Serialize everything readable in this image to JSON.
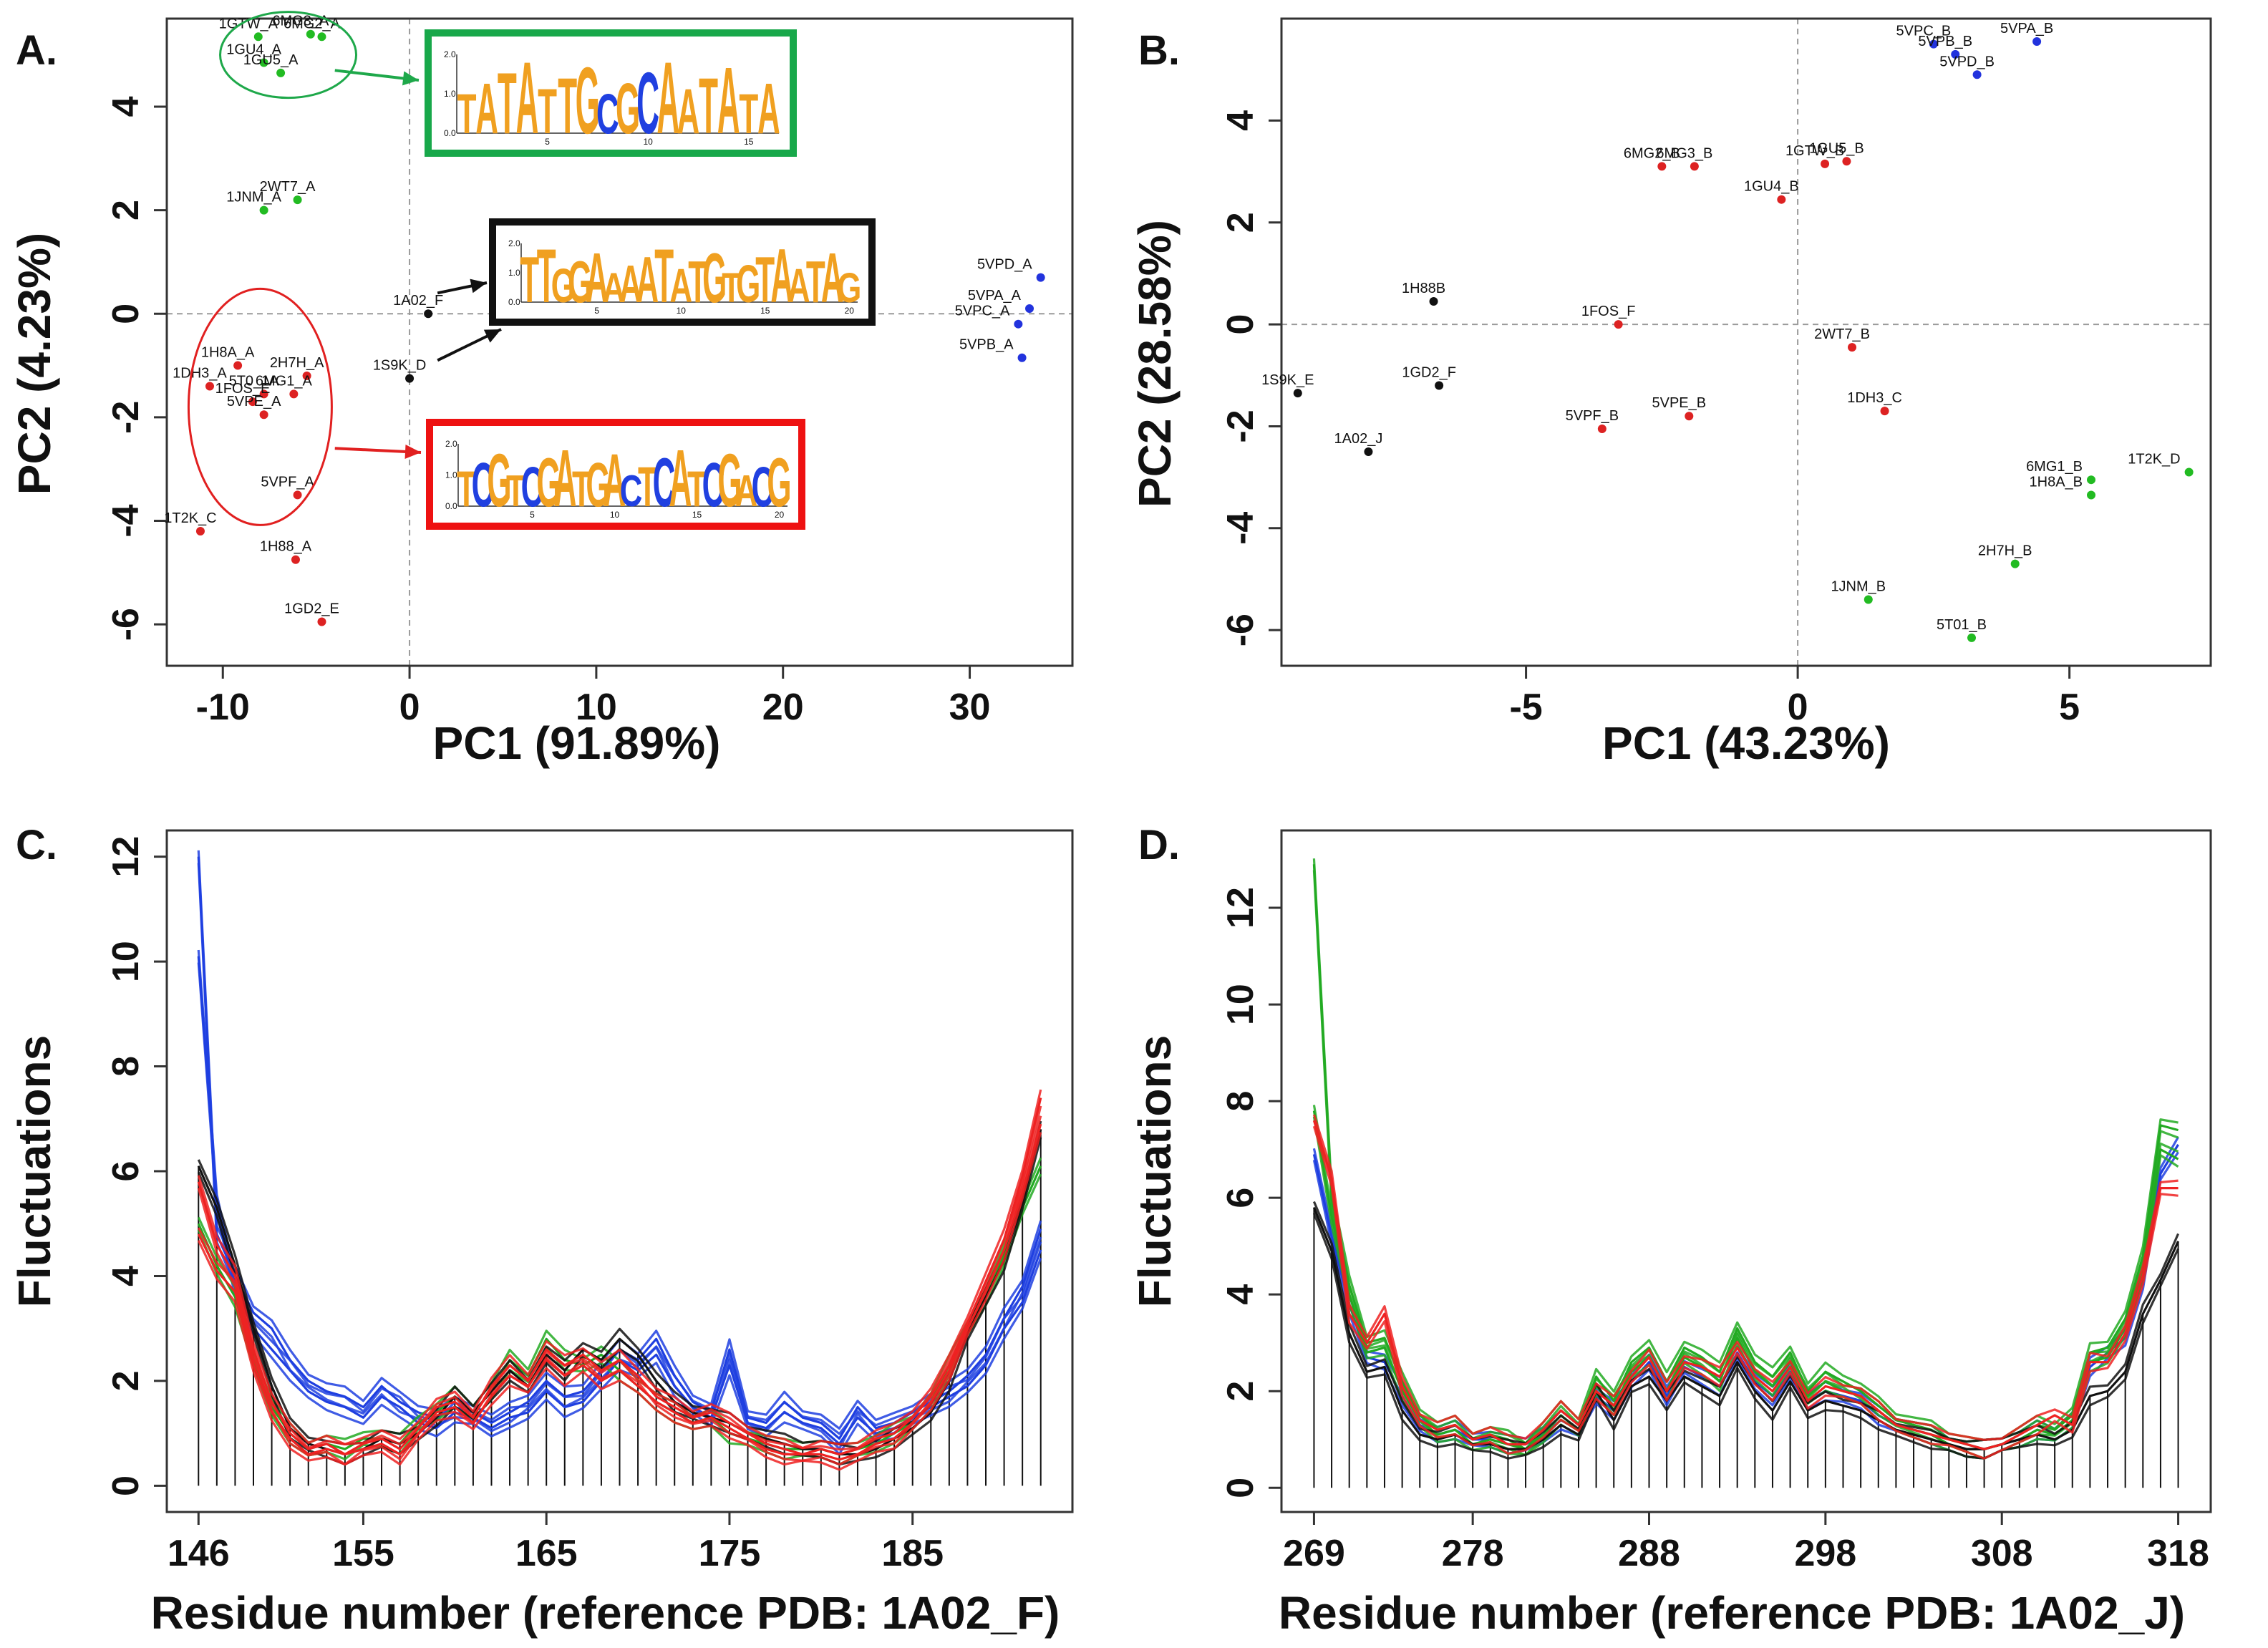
{
  "chart_data": [
    {
      "panel": "A.",
      "type": "scatter",
      "xlabel": "PC1 (91.89%)",
      "ylabel": "PC2 (4.23%)",
      "xlim": [
        -13,
        35.5
      ],
      "ylim": [
        -6.8,
        5.7
      ],
      "xticks": [
        -10,
        0,
        10,
        20,
        30
      ],
      "yticks": [
        -6,
        -4,
        -2,
        0,
        2,
        4
      ],
      "zero_lines": true,
      "points": [
        {
          "label": "6MG3_A",
          "x": -5.3,
          "y": 5.4,
          "color": "#22bb22"
        },
        {
          "label": "1GTW_A",
          "x": -8.1,
          "y": 5.35,
          "color": "#22bb22"
        },
        {
          "label": "6MG2_A",
          "x": -4.7,
          "y": 5.35,
          "color": "#22bb22"
        },
        {
          "label": "1GU4_A",
          "x": -7.8,
          "y": 4.85,
          "color": "#22bb22"
        },
        {
          "label": "1GU5_A",
          "x": -6.9,
          "y": 4.65,
          "color": "#22bb22"
        },
        {
          "label": "2WT7_A",
          "x": -6.0,
          "y": 2.2,
          "color": "#22bb22"
        },
        {
          "label": "1JNM_A",
          "x": -7.8,
          "y": 2.0,
          "color": "#22bb22"
        },
        {
          "label": "1A02_F",
          "x": 1.0,
          "y": 0.0,
          "color": "#111111"
        },
        {
          "label": "1S9K_D",
          "x": 0.0,
          "y": -1.25,
          "color": "#111111"
        },
        {
          "label": "5VPD_A",
          "x": 33.8,
          "y": 0.7,
          "color": "#2233dd"
        },
        {
          "label": "5VPA_A",
          "x": 33.2,
          "y": 0.1,
          "color": "#2233dd"
        },
        {
          "label": "5VPC_A",
          "x": 32.6,
          "y": -0.2,
          "color": "#2233dd"
        },
        {
          "label": "5VPB_A",
          "x": 32.8,
          "y": -0.85,
          "color": "#2233dd"
        },
        {
          "label": "1H8A_A",
          "x": -9.2,
          "y": -1.0,
          "color": "#dd2222"
        },
        {
          "label": "2H7H_A",
          "x": -5.5,
          "y": -1.2,
          "color": "#dd2222"
        },
        {
          "label": "1DH3_A",
          "x": -10.7,
          "y": -1.4,
          "color": "#dd2222"
        },
        {
          "label": "5T0_1A",
          "x": -7.8,
          "y": -1.55,
          "color": "#dd2222"
        },
        {
          "label": "6MG1_A",
          "x": -6.2,
          "y": -1.55,
          "color": "#dd2222"
        },
        {
          "label": "1FOS_E",
          "x": -8.4,
          "y": -1.7,
          "color": "#dd2222"
        },
        {
          "label": "5VPE_A",
          "x": -7.8,
          "y": -1.95,
          "color": "#dd2222"
        },
        {
          "label": "5VPF_A",
          "x": -6.0,
          "y": -3.5,
          "color": "#dd2222"
        },
        {
          "label": "1T2K_C",
          "x": -11.2,
          "y": -4.2,
          "color": "#dd2222"
        },
        {
          "label": "1H88_A",
          "x": -6.1,
          "y": -4.75,
          "color": "#dd2222"
        },
        {
          "label": "1GD2_E",
          "x": -4.7,
          "y": -5.95,
          "color": "#dd2222"
        }
      ],
      "motif_logos": [
        {
          "color": "#18a84a",
          "sequence": "TATATTGCGCAATATA",
          "ymax_label": "2.0",
          "ymid_label": "1.0",
          "ymin_label": "0.0",
          "pos_labels": [
            "5",
            "10",
            "15"
          ]
        },
        {
          "color": "#111111",
          "sequence": "TTGGAAAATATGTGTAATAG",
          "ymax_label": "2.0",
          "ymid_label": "1.0",
          "ymin_label": "0.0",
          "pos_labels": [
            "5",
            "10",
            "15",
            "20"
          ]
        },
        {
          "color": "#ee1111",
          "sequence": "TCGTCGATGACTCATCGACG",
          "ymax_label": "2.0",
          "ymid_label": "1.0",
          "ymin_label": "0.0",
          "pos_labels": [
            "5",
            "10",
            "15",
            "20"
          ]
        }
      ]
    },
    {
      "panel": "B.",
      "type": "scatter",
      "xlabel": "PC1 (43.23%)",
      "ylabel": "PC2 (28.58%)",
      "xlim": [
        -9.5,
        7.6
      ],
      "ylim": [
        -6.7,
        6.0
      ],
      "xticks": [
        -5,
        0,
        5
      ],
      "yticks": [
        -6,
        -4,
        -2,
        0,
        2,
        4
      ],
      "zero_lines": true,
      "points": [
        {
          "label": "5VPC_B",
          "x": 2.5,
          "y": 5.5,
          "color": "#2233dd"
        },
        {
          "label": "5VPA_B",
          "x": 4.4,
          "y": 5.55,
          "color": "#2233dd"
        },
        {
          "label": "5VPB_B",
          "x": 2.9,
          "y": 5.3,
          "color": "#2233dd"
        },
        {
          "label": "5VPD_B",
          "x": 3.3,
          "y": 4.9,
          "color": "#2233dd"
        },
        {
          "label": "6MG2_B",
          "x": -2.5,
          "y": 3.1,
          "color": "#dd2222"
        },
        {
          "label": "6MG3_B",
          "x": -1.9,
          "y": 3.1,
          "color": "#dd2222"
        },
        {
          "label": "1GTW_B",
          "x": 0.5,
          "y": 3.15,
          "color": "#dd2222"
        },
        {
          "label": "1GU5_B",
          "x": 0.9,
          "y": 3.2,
          "color": "#dd2222"
        },
        {
          "label": "1GU4_B",
          "x": -0.3,
          "y": 2.45,
          "color": "#dd2222"
        },
        {
          "label": "1H88B",
          "x": -6.7,
          "y": 0.45,
          "color": "#111111"
        },
        {
          "label": "1FOS_F",
          "x": -3.3,
          "y": 0.0,
          "color": "#dd2222"
        },
        {
          "label": "2WT7_B",
          "x": 1.0,
          "y": -0.45,
          "color": "#dd2222"
        },
        {
          "label": "1S9K_E",
          "x": -9.2,
          "y": -1.35,
          "color": "#111111"
        },
        {
          "label": "1GD2_F",
          "x": -6.6,
          "y": -1.2,
          "color": "#111111"
        },
        {
          "label": "5VPE_B",
          "x": -2.0,
          "y": -1.8,
          "color": "#dd2222"
        },
        {
          "label": "1DH3_C",
          "x": 1.6,
          "y": -1.7,
          "color": "#dd2222"
        },
        {
          "label": "5VPF_B",
          "x": -3.6,
          "y": -2.05,
          "color": "#dd2222"
        },
        {
          "label": "1A02_J",
          "x": -7.9,
          "y": -2.5,
          "color": "#111111"
        },
        {
          "label": "6MG1_B",
          "x": 5.4,
          "y": -3.05,
          "color": "#22bb22"
        },
        {
          "label": "1T2K_D",
          "x": 7.2,
          "y": -2.9,
          "color": "#22bb22"
        },
        {
          "label": "1H8A_B",
          "x": 5.4,
          "y": -3.35,
          "color": "#22bb22"
        },
        {
          "label": "2H7H_B",
          "x": 4.0,
          "y": -4.7,
          "color": "#22bb22"
        },
        {
          "label": "1JNM_B",
          "x": 1.3,
          "y": -5.4,
          "color": "#22bb22"
        },
        {
          "label": "5T01_B",
          "x": 3.2,
          "y": -6.15,
          "color": "#22bb22"
        }
      ]
    },
    {
      "panel": "C.",
      "type": "line",
      "xlabel": "Residue number (reference PDB: 1A02_F)",
      "ylabel": "Fluctuations",
      "x_start": 146,
      "x_end": 192,
      "xticks": [
        146,
        155,
        165,
        175,
        185
      ],
      "yticks": [
        0,
        2,
        4,
        6,
        8,
        10,
        12
      ],
      "ylim": [
        -0.5,
        12.5
      ],
      "series": [
        {
          "name": "blue",
          "color": "#1f3fe0",
          "values": [
            12.0,
            4.8,
            4.0,
            3.3,
            3.0,
            2.4,
            2.0,
            1.8,
            1.7,
            1.5,
            1.9,
            1.6,
            1.4,
            1.3,
            1.5,
            1.4,
            1.2,
            1.4,
            1.6,
            2.0,
            1.7,
            1.8,
            2.2,
            2.6,
            2.4,
            2.8,
            2.1,
            1.6,
            1.4,
            2.6,
            1.3,
            1.2,
            1.6,
            1.3,
            1.2,
            0.9,
            1.5,
            1.1,
            1.2,
            1.4,
            1.6,
            1.8,
            2.1,
            2.5,
            3.2,
            3.8,
            4.9
          ]
        },
        {
          "name": "blue-2",
          "color": "#1f3fe0",
          "values": [
            10.1,
            5.4,
            3.8,
            3.0,
            2.6,
            2.2,
            1.8,
            1.6,
            1.5,
            1.3,
            1.7,
            1.5,
            1.2,
            1.1,
            1.4,
            1.3,
            1.1,
            1.3,
            1.4,
            1.8,
            1.5,
            1.6,
            2.0,
            2.4,
            2.2,
            2.5,
            1.9,
            1.5,
            1.3,
            2.3,
            1.2,
            1.1,
            1.4,
            1.2,
            1.1,
            0.8,
            1.3,
            1.0,
            1.1,
            1.3,
            1.5,
            1.7,
            1.9,
            2.3,
            3.0,
            3.5,
            4.5
          ]
        },
        {
          "name": "black",
          "color": "#111111",
          "values": [
            6.1,
            5.3,
            4.2,
            3.0,
            1.9,
            1.1,
            0.8,
            0.7,
            0.6,
            0.7,
            0.9,
            0.8,
            1.0,
            1.3,
            1.7,
            1.4,
            1.8,
            2.2,
            1.9,
            2.5,
            2.2,
            2.6,
            2.4,
            2.8,
            2.5,
            2.0,
            1.6,
            1.4,
            1.3,
            1.2,
            1.0,
            0.9,
            0.8,
            0.7,
            0.7,
            0.6,
            0.6,
            0.7,
            0.9,
            1.1,
            1.4,
            2.0,
            2.9,
            3.6,
            4.3,
            5.4,
            6.8
          ]
        },
        {
          "name": "red",
          "color": "#ee2222",
          "values": [
            5.8,
            4.6,
            4.0,
            2.6,
            1.6,
            1.0,
            0.7,
            0.8,
            0.6,
            0.8,
            0.9,
            0.7,
            1.1,
            1.5,
            1.6,
            1.3,
            1.9,
            2.3,
            2.0,
            2.6,
            2.3,
            2.5,
            2.2,
            2.4,
            2.1,
            1.7,
            1.5,
            1.3,
            1.4,
            1.2,
            1.0,
            0.8,
            0.7,
            0.6,
            0.7,
            0.6,
            0.7,
            0.9,
            1.0,
            1.3,
            1.7,
            2.3,
            3.1,
            3.9,
            4.7,
            5.9,
            7.4
          ]
        },
        {
          "name": "red-2",
          "color": "#ee2222",
          "values": [
            4.8,
            4.1,
            3.7,
            2.3,
            1.4,
            0.9,
            0.6,
            0.7,
            0.6,
            0.7,
            0.8,
            0.6,
            1.0,
            1.4,
            1.5,
            1.2,
            1.7,
            2.1,
            1.9,
            2.4,
            2.1,
            2.3,
            2.0,
            2.2,
            1.9,
            1.6,
            1.4,
            1.2,
            1.3,
            1.1,
            0.9,
            0.7,
            0.6,
            0.6,
            0.6,
            0.5,
            0.6,
            0.8,
            0.9,
            1.2,
            1.6,
            2.2,
            3.0,
            3.7,
            4.5,
            5.6,
            6.9
          ]
        },
        {
          "name": "green",
          "color": "#22aa22",
          "values": [
            5.0,
            4.2,
            3.6,
            2.4,
            1.5,
            1.0,
            0.7,
            0.8,
            0.7,
            0.9,
            0.9,
            0.8,
            1.2,
            1.4,
            1.7,
            1.4,
            1.8,
            2.4,
            2.1,
            2.8,
            2.4,
            2.3,
            2.5,
            2.2,
            1.9,
            1.6,
            1.4,
            1.2,
            1.3,
            1.0,
            0.9,
            0.8,
            0.7,
            0.7,
            0.7,
            0.6,
            0.7,
            0.8,
            1.0,
            1.2,
            1.6,
            2.3,
            3.0,
            3.6,
            4.4,
            5.3,
            6.1
          ]
        }
      ],
      "stems": "black vertical lines from 0 to the black series at every residue"
    },
    {
      "panel": "D.",
      "type": "line",
      "xlabel": "Residue number (reference PDB: 1A02_J)",
      "ylabel": "Fluctuations",
      "x_start": 269,
      "x_end": 318,
      "xticks": [
        269,
        278,
        288,
        298,
        308,
        318
      ],
      "yticks": [
        0,
        2,
        4,
        6,
        8,
        10,
        12
      ],
      "ylim": [
        -0.5,
        13.6
      ],
      "series": [
        {
          "name": "green",
          "color": "#22aa22",
          "values": [
            12.9,
            6.0,
            4.2,
            3.0,
            3.1,
            2.2,
            1.5,
            1.2,
            1.3,
            1.0,
            1.1,
            1.0,
            0.8,
            1.2,
            1.6,
            1.3,
            2.3,
            1.8,
            2.6,
            2.9,
            2.2,
            2.9,
            2.7,
            2.4,
            3.3,
            2.6,
            2.3,
            2.8,
            2.0,
            2.4,
            2.2,
            2.0,
            1.7,
            1.4,
            1.3,
            1.2,
            1.0,
            0.9,
            0.8,
            0.9,
            1.1,
            1.3,
            1.2,
            1.5,
            2.8,
            2.9,
            3.5,
            4.8,
            7.5,
            7.4
          ]
        },
        {
          "name": "green-2",
          "color": "#22aa22",
          "values": [
            7.8,
            5.6,
            4.0,
            2.8,
            2.9,
            2.0,
            1.4,
            1.1,
            1.2,
            0.9,
            1.0,
            0.9,
            0.8,
            1.1,
            1.5,
            1.2,
            2.1,
            1.7,
            2.4,
            2.7,
            2.0,
            2.7,
            2.5,
            2.2,
            3.1,
            2.4,
            2.1,
            2.6,
            1.9,
            2.2,
            2.0,
            1.9,
            1.6,
            1.3,
            1.2,
            1.1,
            0.9,
            0.8,
            0.8,
            0.9,
            1.0,
            1.2,
            1.1,
            1.4,
            2.6,
            2.7,
            3.3,
            4.5,
            7.0,
            6.8
          ]
        },
        {
          "name": "blue",
          "color": "#1f3fe0",
          "values": [
            6.9,
            5.2,
            3.8,
            2.7,
            2.6,
            1.9,
            1.3,
            1.1,
            1.2,
            1.0,
            1.0,
            0.9,
            0.9,
            1.1,
            1.4,
            1.2,
            1.9,
            1.6,
            2.2,
            2.6,
            1.9,
            2.5,
            2.3,
            2.1,
            2.8,
            2.2,
            1.9,
            2.4,
            1.8,
            2.0,
            1.9,
            1.8,
            1.5,
            1.3,
            1.2,
            1.1,
            0.9,
            0.8,
            0.8,
            0.9,
            1.0,
            1.2,
            1.1,
            1.4,
            2.5,
            2.8,
            3.1,
            4.3,
            6.5,
            7.1
          ]
        },
        {
          "name": "red",
          "color": "#ee2222",
          "values": [
            7.6,
            6.4,
            3.6,
            3.0,
            3.6,
            2.1,
            1.4,
            1.2,
            1.3,
            1.0,
            1.1,
            0.9,
            0.9,
            1.2,
            1.6,
            1.3,
            2.0,
            1.7,
            2.3,
            2.7,
            2.0,
            2.6,
            2.5,
            2.3,
            2.9,
            2.3,
            2.0,
            2.5,
            1.8,
            2.1,
            2.0,
            1.9,
            1.6,
            1.3,
            1.2,
            1.1,
            1.0,
            0.9,
            0.8,
            0.9,
            1.1,
            1.3,
            1.5,
            1.3,
            2.6,
            2.6,
            3.2,
            4.4,
            6.2,
            6.2
          ]
        },
        {
          "name": "black",
          "color": "#111111",
          "values": [
            5.8,
            4.9,
            3.2,
            2.4,
            2.5,
            1.6,
            1.1,
            1.0,
            1.1,
            0.9,
            0.9,
            0.8,
            0.8,
            1.0,
            1.3,
            1.1,
            2.0,
            1.4,
            2.1,
            2.3,
            1.8,
            2.3,
            2.1,
            1.9,
            2.6,
            2.0,
            1.6,
            2.2,
            1.6,
            1.8,
            1.7,
            1.6,
            1.4,
            1.2,
            1.1,
            1.0,
            0.9,
            0.8,
            0.8,
            0.9,
            1.0,
            1.1,
            1.0,
            1.2,
            1.9,
            2.0,
            2.4,
            3.6,
            4.3,
            5.1
          ]
        }
      ],
      "stems": "black vertical lines from 0 to the black series at every residue"
    }
  ]
}
